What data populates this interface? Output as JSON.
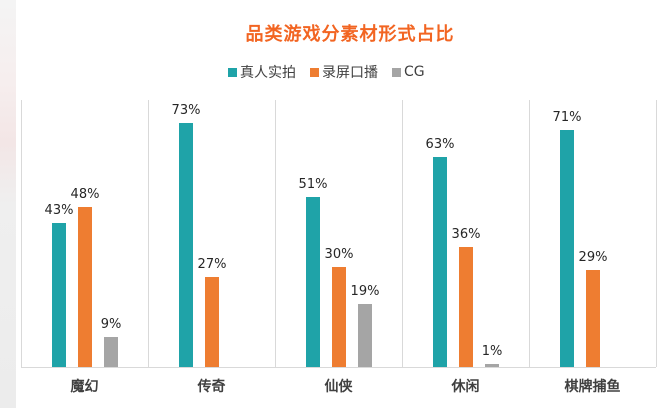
{
  "chart_data": {
    "type": "bar",
    "title": "品类游戏分素材形式占比",
    "categories": [
      "魔幻",
      "传奇",
      "仙侠",
      "休闲",
      "棋牌捕鱼"
    ],
    "series": [
      {
        "name": "真人实拍",
        "color": "#1FA3A8",
        "values": [
          43,
          73,
          51,
          63,
          71
        ],
        "labels": [
          "43%",
          "73%",
          "51%",
          "63%",
          "71%"
        ]
      },
      {
        "name": "录屏口播",
        "color": "#EE7D31",
        "values": [
          48,
          27,
          30,
          36,
          29
        ],
        "labels": [
          "48%",
          "27%",
          "30%",
          "36%",
          "29%"
        ]
      },
      {
        "name": "CG",
        "color": "#A5A5A5",
        "values": [
          9,
          0,
          19,
          1,
          0
        ],
        "labels": [
          "9%",
          "",
          "19%",
          "1%",
          ""
        ]
      }
    ],
    "xlabel": "",
    "ylabel": "",
    "ylim": [
      0,
      80
    ],
    "unit": "%",
    "grid": "vertical category separators",
    "legend_position": "top"
  },
  "title": "品类游戏分素材形式占比",
  "legend": [
    {
      "label": "真人实拍",
      "color": "#1FA3A8"
    },
    {
      "label": "录屏口播",
      "color": "#EE7D31"
    },
    {
      "label": "CG",
      "color": "#A5A5A5"
    }
  ]
}
